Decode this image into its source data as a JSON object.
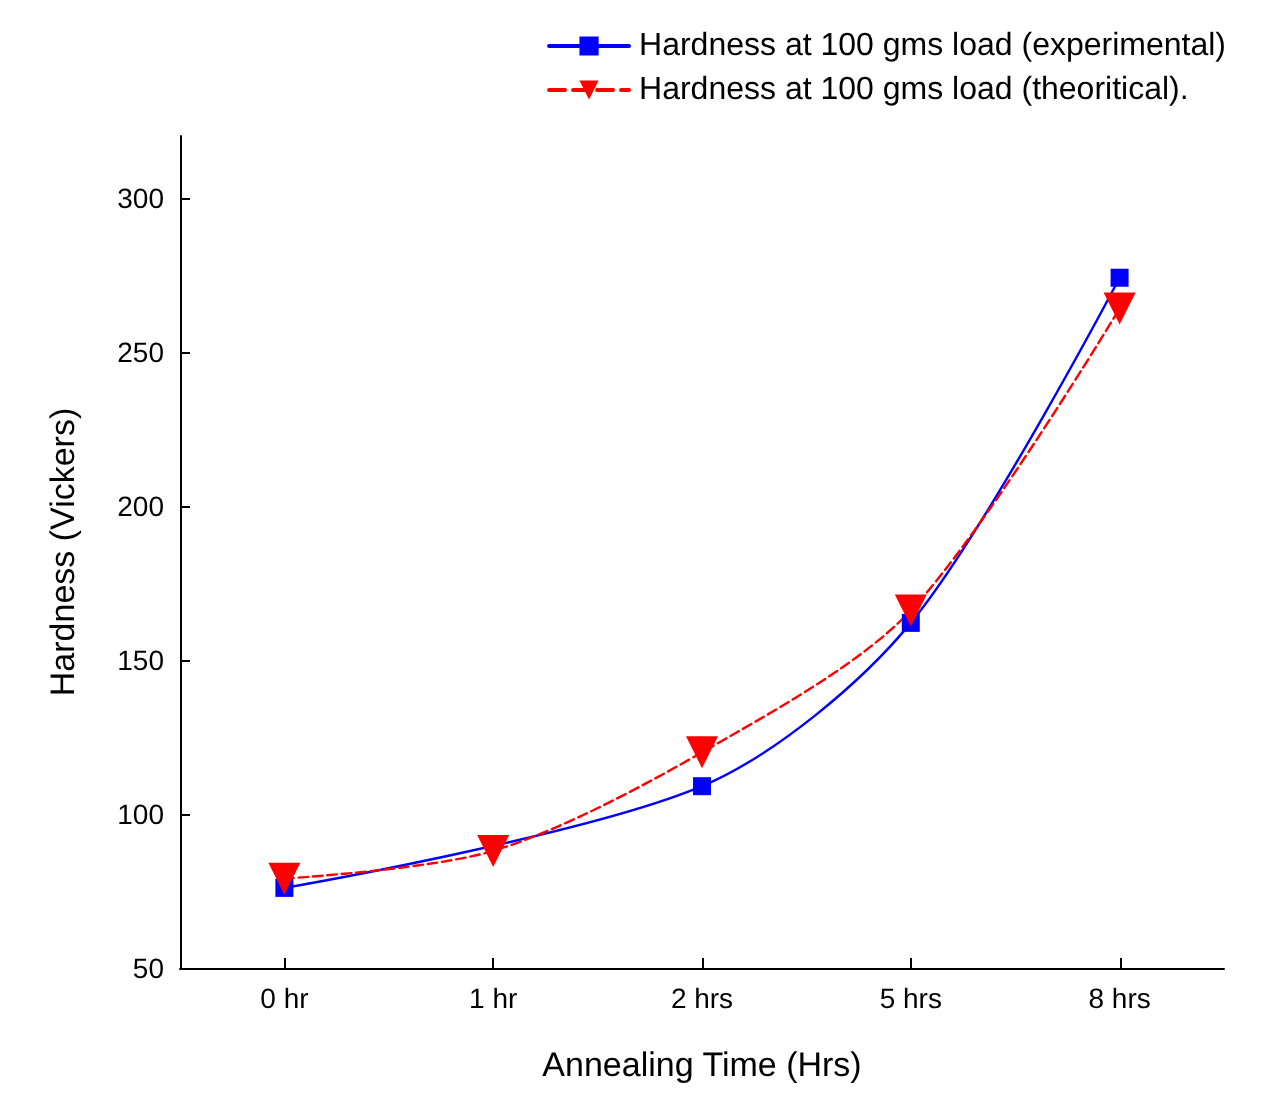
{
  "chart_data": {
    "type": "line",
    "xlabel": "Annealing Time (Hrs)",
    "ylabel": "Hardness (Vickers)",
    "categories": [
      "0 hr",
      "1 hr",
      "2 hrs",
      "5 hrs",
      "8 hrs"
    ],
    "series": [
      {
        "name": "Hardness at 100 gms load (experimental)",
        "color": "#0000ff",
        "values": [
          76,
          null,
          109,
          162,
          274
        ],
        "marker": "square",
        "line_style": "solid"
      },
      {
        "name": "Hardness at 100 gms load (theoritical).",
        "color": "#ff0000",
        "values": [
          79,
          88,
          120,
          166,
          264
        ],
        "marker": "triangle",
        "line_style": "dashed"
      }
    ],
    "ylim": [
      50,
      320
    ],
    "yticks": [
      50,
      100,
      150,
      200,
      250,
      300
    ],
    "grid": false,
    "legend": "top right"
  }
}
